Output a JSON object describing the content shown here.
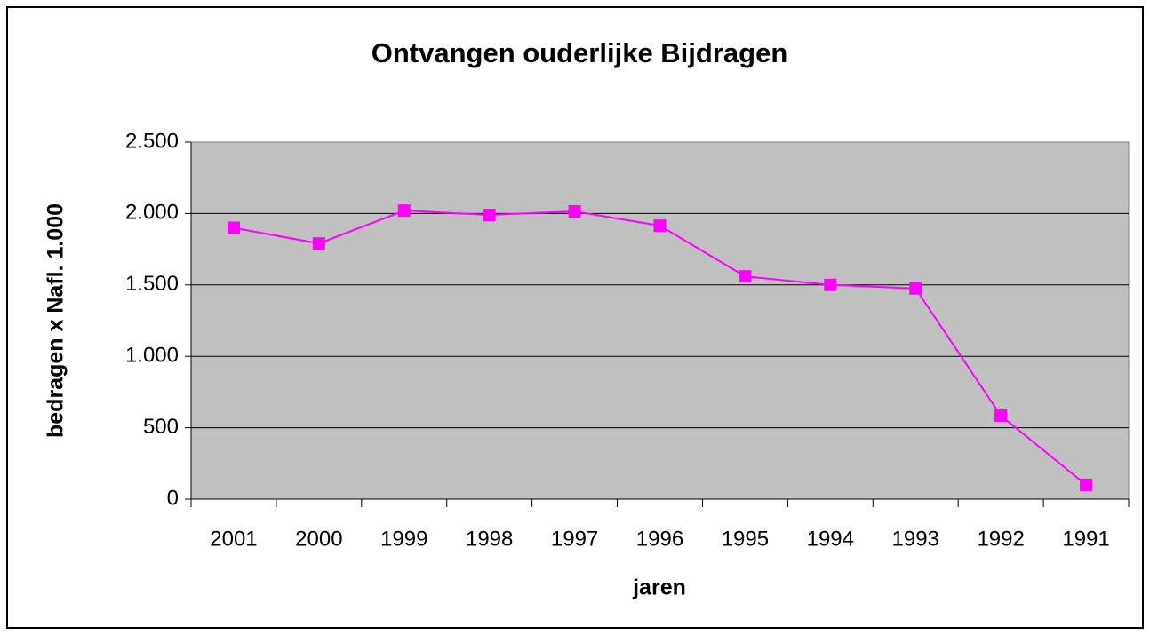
{
  "chart_data": {
    "type": "line",
    "title": "Ontvangen ouderlijke Bijdragen",
    "x_label": "jaren",
    "y_label": "bedragen x Nafl. 1.000",
    "categories": [
      "2001",
      "2000",
      "1999",
      "1998",
      "1997",
      "1996",
      "1995",
      "1994",
      "1993",
      "1992",
      "1991"
    ],
    "series": [
      {
        "name": "Ontvangen ouderlijke Bijdragen",
        "color": "#ff00ff",
        "values": [
          1900,
          1790,
          2020,
          1990,
          2015,
          1915,
          1560,
          1500,
          1475,
          585,
          100
        ]
      }
    ],
    "ylim": [
      0,
      2500
    ],
    "yticks": [
      0,
      500,
      {
        "value": 1000,
        "label": "1.000"
      },
      {
        "value": 1500,
        "label": "1.500"
      },
      {
        "value": 2000,
        "label": "2.000"
      },
      {
        "value": 2500,
        "label": "2.500"
      }
    ],
    "grid": true,
    "plot_background": "#c0c0c0"
  }
}
